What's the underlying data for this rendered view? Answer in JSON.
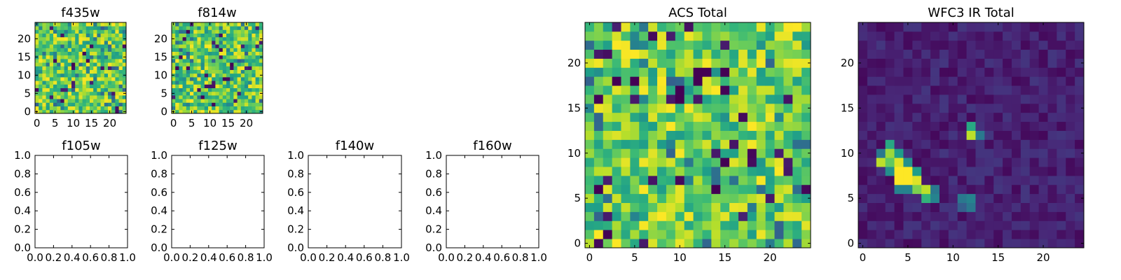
{
  "chart_data": [
    {
      "type": "heatmap",
      "title": "f435w",
      "grid_size": 25,
      "x_ticks": [
        "0",
        "5",
        "10",
        "15",
        "20"
      ],
      "y_ticks": [
        "0",
        "5",
        "10",
        "15",
        "20"
      ],
      "xlim": [
        -0.5,
        24.5
      ],
      "ylim": [
        -0.5,
        24.5
      ],
      "colormap": "viridis",
      "texture": "uniform noise, mostly green-yellow with scattered dark cells"
    },
    {
      "type": "heatmap",
      "title": "f814w",
      "grid_size": 25,
      "x_ticks": [
        "0",
        "5",
        "10",
        "15",
        "20"
      ],
      "y_ticks": [
        "0",
        "5",
        "10",
        "15",
        "20"
      ],
      "xlim": [
        -0.5,
        24.5
      ],
      "ylim": [
        -0.5,
        24.5
      ],
      "colormap": "viridis",
      "texture": "uniform noise, mostly green-yellow with scattered dark cells"
    },
    {
      "type": "line",
      "title": "f105w",
      "series": [],
      "x_ticks": [
        "0.0",
        "0.2",
        "0.4",
        "0.6",
        "0.8",
        "1.0"
      ],
      "y_ticks": [
        "0.0",
        "0.2",
        "0.4",
        "0.6",
        "0.8",
        "1.0"
      ],
      "xlim": [
        0,
        1
      ],
      "ylim": [
        0,
        1
      ]
    },
    {
      "type": "line",
      "title": "f125w",
      "series": [],
      "x_ticks": [
        "0.0",
        "0.2",
        "0.4",
        "0.6",
        "0.8",
        "1.0"
      ],
      "y_ticks": [
        "0.0",
        "0.2",
        "0.4",
        "0.6",
        "0.8",
        "1.0"
      ],
      "xlim": [
        0,
        1
      ],
      "ylim": [
        0,
        1
      ]
    },
    {
      "type": "line",
      "title": "f140w",
      "series": [],
      "x_ticks": [
        "0.0",
        "0.2",
        "0.4",
        "0.6",
        "0.8",
        "1.0"
      ],
      "y_ticks": [
        "0.0",
        "0.2",
        "0.4",
        "0.6",
        "0.8",
        "1.0"
      ],
      "xlim": [
        0,
        1
      ],
      "ylim": [
        0,
        1
      ]
    },
    {
      "type": "line",
      "title": "f160w",
      "series": [],
      "x_ticks": [
        "0.0",
        "0.2",
        "0.4",
        "0.6",
        "0.8",
        "1.0"
      ],
      "y_ticks": [
        "0.0",
        "0.2",
        "0.4",
        "0.6",
        "0.8",
        "1.0"
      ],
      "xlim": [
        0,
        1
      ],
      "ylim": [
        0,
        1
      ]
    },
    {
      "type": "heatmap",
      "title": "ACS Total",
      "grid_size": 25,
      "x_ticks": [
        "0",
        "5",
        "10",
        "15",
        "20"
      ],
      "y_ticks": [
        "0",
        "5",
        "10",
        "15",
        "20"
      ],
      "xlim": [
        -0.5,
        24.5
      ],
      "ylim": [
        -0.5,
        24.5
      ],
      "colormap": "viridis",
      "texture": "uniform noise, mostly green-yellow",
      "dark_cells": [
        [
          3,
          18
        ],
        [
          5,
          18
        ],
        [
          10,
          17
        ],
        [
          12,
          19
        ],
        [
          13,
          19
        ],
        [
          12,
          18
        ],
        [
          15,
          19
        ],
        [
          10,
          16
        ],
        [
          15,
          9
        ],
        [
          14,
          6
        ],
        [
          1,
          6
        ],
        [
          2,
          1
        ]
      ]
    },
    {
      "type": "heatmap",
      "title": "WFC3 IR Total",
      "grid_size": 25,
      "x_ticks": [
        "0",
        "5",
        "10",
        "15",
        "20"
      ],
      "y_ticks": [
        "0",
        "5",
        "10",
        "15",
        "20"
      ],
      "xlim": [
        -0.5,
        24.5
      ],
      "ylim": [
        -0.5,
        24.5
      ],
      "colormap": "viridis",
      "texture": "dark purple background with a bright diagonal source",
      "bright_cells": [
        [
          4,
          7,
          1.0
        ],
        [
          5,
          7,
          1.0
        ],
        [
          4,
          8,
          1.0
        ],
        [
          5,
          8,
          1.0
        ],
        [
          6,
          7,
          0.95
        ],
        [
          4,
          9,
          0.95
        ],
        [
          3,
          10,
          0.85
        ],
        [
          2,
          9,
          0.9
        ],
        [
          3,
          9,
          0.75
        ],
        [
          6,
          6,
          0.8
        ],
        [
          7,
          6,
          0.9
        ],
        [
          7,
          5,
          0.65
        ],
        [
          8,
          5,
          0.45
        ],
        [
          8,
          6,
          0.4
        ],
        [
          3,
          8,
          0.5
        ],
        [
          5,
          9,
          0.5
        ],
        [
          6,
          8,
          0.55
        ],
        [
          4,
          6,
          0.45
        ],
        [
          5,
          6,
          0.45
        ],
        [
          3,
          11,
          0.6
        ],
        [
          4,
          10,
          0.55
        ],
        [
          2,
          10,
          0.4
        ],
        [
          12,
          12,
          0.9
        ],
        [
          12,
          13,
          0.6
        ],
        [
          13,
          12,
          0.4
        ],
        [
          11,
          5,
          0.4
        ],
        [
          12,
          5,
          0.45
        ],
        [
          12,
          4,
          0.4
        ],
        [
          11,
          4,
          0.3
        ]
      ]
    }
  ]
}
